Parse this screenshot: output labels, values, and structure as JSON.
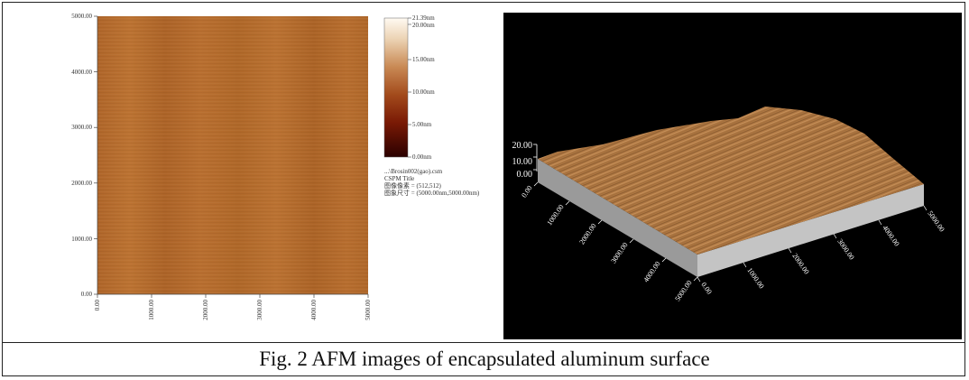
{
  "caption": "Fig. 2 AFM images of encapsulated aluminum surface",
  "left_panel": {
    "y_ticks": [
      "5000.00",
      "4000.00",
      "3000.00",
      "2000.00",
      "1000.00",
      "0.00"
    ],
    "x_ticks": [
      "0.00",
      "1000.00",
      "2000.00",
      "3000.00",
      "4000.00",
      "5000.00"
    ],
    "colorbar": {
      "labels": [
        "21.39nm",
        "20.00nm",
        "15.00nm",
        "10.00nm",
        "5.00nm",
        "0.00nm"
      ]
    },
    "info_lines": [
      "...\\Brosin002(gao).csm",
      "CSPM Title",
      "图像像素 = (512,512)",
      "图象尺寸 = (5000.00nm,5000.00nm)"
    ],
    "colors": {
      "surface": "#b46b2c",
      "colorbar_top": "#fffaf2",
      "colorbar_bottom": "#2a0000"
    }
  },
  "right_panel": {
    "z_ticks": [
      "20.00",
      "10.00",
      "0.00"
    ],
    "left_axis_ticks": [
      "0.00",
      "1000.00",
      "2000.00",
      "3000.00",
      "4000.00",
      "5000.00"
    ],
    "right_axis_ticks": [
      "5000.00",
      "4000.00",
      "3000.00",
      "2000.00",
      "1000.00",
      "0.00"
    ],
    "colors": {
      "background": "#000000",
      "surface": "#b07a45",
      "base": "#b8b8b8"
    }
  }
}
